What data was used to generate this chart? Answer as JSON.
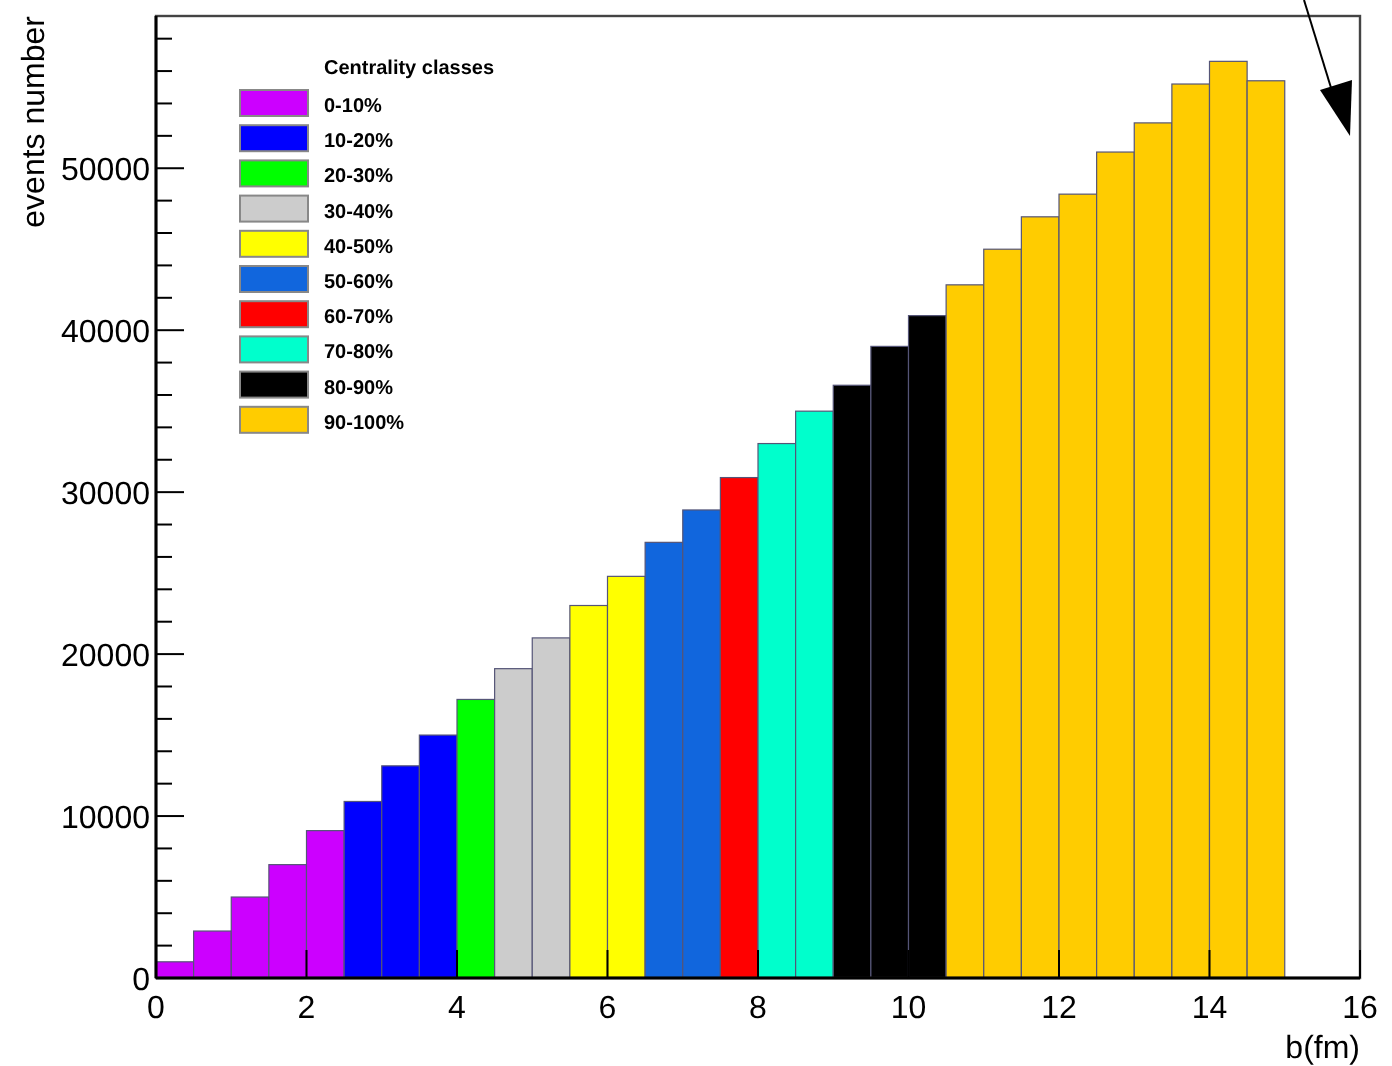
{
  "chart_data": {
    "type": "histogram",
    "xlabel": "b(fm)",
    "ylabel": "events number",
    "legend_title": "Centrality classes",
    "legend": "top left",
    "bins": [
      0,
      0.5,
      1,
      1.5,
      2,
      2.5,
      3,
      3.5,
      4,
      4.5,
      5,
      5.5,
      6,
      6.5,
      7,
      7.5,
      8,
      8.5,
      9,
      9.5,
      10,
      10.5,
      11,
      11.5,
      12,
      12.5,
      13,
      13.5,
      14,
      14.5,
      15
    ],
    "series": [
      {
        "name": "0-10%",
        "color": "#cc00ff",
        "values": [
          1000,
          2900,
          5000,
          7000,
          9100,
          null,
          null,
          null,
          null,
          null,
          null,
          null,
          null,
          null,
          null,
          null,
          null,
          null,
          null,
          null,
          null,
          null,
          null,
          null,
          null,
          null,
          null,
          null,
          null,
          null
        ]
      },
      {
        "name": "10-20%",
        "color": "#0000ff",
        "values": [
          null,
          null,
          null,
          null,
          null,
          10900,
          13100,
          15000,
          null,
          null,
          null,
          null,
          null,
          null,
          null,
          null,
          null,
          null,
          null,
          null,
          null,
          null,
          null,
          null,
          null,
          null,
          null,
          null,
          null,
          null
        ]
      },
      {
        "name": "20-30%",
        "color": "#00ff00",
        "values": [
          null,
          null,
          null,
          null,
          null,
          null,
          null,
          null,
          17200,
          null,
          null,
          null,
          null,
          null,
          null,
          null,
          null,
          null,
          null,
          null,
          null,
          null,
          null,
          null,
          null,
          null,
          null,
          null,
          null,
          null
        ]
      },
      {
        "name": "30-40%",
        "color": "#cccccc",
        "values": [
          null,
          null,
          null,
          null,
          null,
          null,
          null,
          null,
          null,
          19100,
          21000,
          null,
          null,
          null,
          null,
          null,
          null,
          null,
          null,
          null,
          null,
          null,
          null,
          null,
          null,
          null,
          null,
          null,
          null,
          null
        ]
      },
      {
        "name": "40-50%",
        "color": "#ffff00",
        "values": [
          null,
          null,
          null,
          null,
          null,
          null,
          null,
          null,
          null,
          null,
          null,
          23000,
          24800,
          null,
          null,
          null,
          null,
          null,
          null,
          null,
          null,
          null,
          null,
          null,
          null,
          null,
          null,
          null,
          null,
          null
        ]
      },
      {
        "name": "50-60%",
        "color": "#1166dd",
        "values": [
          null,
          null,
          null,
          null,
          null,
          null,
          null,
          null,
          null,
          null,
          null,
          null,
          null,
          26900,
          28900,
          null,
          null,
          null,
          null,
          null,
          null,
          null,
          null,
          null,
          null,
          null,
          null,
          null,
          null,
          null
        ]
      },
      {
        "name": "60-70%",
        "color": "#ff0000",
        "values": [
          null,
          null,
          null,
          null,
          null,
          null,
          null,
          null,
          null,
          null,
          null,
          null,
          null,
          null,
          null,
          30900,
          null,
          null,
          null,
          null,
          null,
          null,
          null,
          null,
          null,
          null,
          null,
          null,
          null,
          null
        ]
      },
      {
        "name": "70-80%",
        "color": "#00ffcc",
        "values": [
          null,
          null,
          null,
          null,
          null,
          null,
          null,
          null,
          null,
          null,
          null,
          null,
          null,
          null,
          null,
          null,
          33000,
          35000,
          null,
          null,
          null,
          null,
          null,
          null,
          null,
          null,
          null,
          null,
          null,
          null
        ]
      },
      {
        "name": "80-90%",
        "color": "#000000",
        "values": [
          null,
          null,
          null,
          null,
          null,
          null,
          null,
          null,
          null,
          null,
          null,
          null,
          null,
          null,
          null,
          null,
          null,
          null,
          36600,
          39000,
          40900,
          null,
          null,
          null,
          null,
          null,
          null,
          null,
          null,
          null
        ]
      },
      {
        "name": "90-100%",
        "color": "#ffcc00",
        "values": [
          null,
          null,
          null,
          null,
          null,
          null,
          null,
          null,
          null,
          null,
          null,
          null,
          null,
          null,
          null,
          null,
          null,
          null,
          null,
          null,
          null,
          42800,
          45000,
          47000,
          48400,
          51000,
          52800,
          55200,
          56600,
          55400
        ]
      }
    ],
    "xlim": [
      0,
      16
    ],
    "xticks": [
      0,
      2,
      4,
      6,
      8,
      10,
      12,
      14,
      16
    ],
    "ylim": [
      0,
      59400
    ],
    "yticks": [
      0,
      10000,
      20000,
      30000,
      40000,
      50000
    ]
  }
}
